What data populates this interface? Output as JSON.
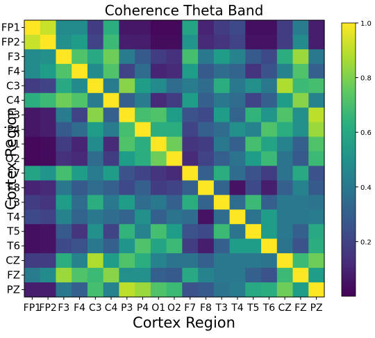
{
  "chart_data": {
    "type": "heatmap",
    "title": "Coherence Theta Band",
    "xlabel": "Cortex Region",
    "ylabel": "Cortex Region",
    "row_labels": [
      "FP1",
      "FP2",
      "F3",
      "F4",
      "C3",
      "C4",
      "P3",
      "P4",
      "O1",
      "O2",
      "F7",
      "F8",
      "T3",
      "T4",
      "T5",
      "T6",
      "CZ",
      "FZ",
      "PZ"
    ],
    "col_labels": [
      "FP1",
      "FP2",
      "F3",
      "F4",
      "C3",
      "C4",
      "P3",
      "P4",
      "O1",
      "O2",
      "F7",
      "F8",
      "T3",
      "T4",
      "T5",
      "T6",
      "CZ",
      "FZ",
      "PZ"
    ],
    "colormap": "viridis",
    "colorbar": {
      "min": 0.0,
      "max": 1.0,
      "ticks": [
        0.2,
        0.4,
        0.6,
        0.8,
        1.0
      ],
      "tick_labels": [
        "0.2",
        "0.4",
        "0.6",
        "0.8",
        "1.0"
      ]
    },
    "values": [
      [
        1.0,
        0.92,
        0.48,
        0.48,
        0.18,
        0.62,
        0.06,
        0.06,
        0.02,
        0.02,
        0.58,
        0.1,
        0.18,
        0.22,
        0.04,
        0.04,
        0.18,
        0.42,
        0.08
      ],
      [
        0.92,
        1.0,
        0.5,
        0.55,
        0.2,
        0.68,
        0.08,
        0.08,
        0.03,
        0.03,
        0.52,
        0.12,
        0.15,
        0.2,
        0.05,
        0.05,
        0.18,
        0.48,
        0.08
      ],
      [
        0.48,
        0.5,
        1.0,
        0.72,
        0.6,
        0.78,
        0.42,
        0.28,
        0.18,
        0.14,
        0.7,
        0.4,
        0.55,
        0.45,
        0.28,
        0.22,
        0.62,
        0.85,
        0.4
      ],
      [
        0.48,
        0.55,
        0.72,
        1.0,
        0.48,
        0.72,
        0.2,
        0.35,
        0.1,
        0.12,
        0.55,
        0.28,
        0.35,
        0.32,
        0.15,
        0.25,
        0.45,
        0.72,
        0.3
      ],
      [
        0.18,
        0.2,
        0.6,
        0.48,
        1.0,
        0.42,
        0.82,
        0.55,
        0.48,
        0.35,
        0.42,
        0.35,
        0.62,
        0.4,
        0.5,
        0.4,
        0.88,
        0.68,
        0.7
      ],
      [
        0.62,
        0.68,
        0.78,
        0.72,
        0.42,
        1.0,
        0.3,
        0.42,
        0.12,
        0.18,
        0.55,
        0.3,
        0.4,
        0.35,
        0.2,
        0.3,
        0.55,
        0.82,
        0.45
      ],
      [
        0.06,
        0.08,
        0.42,
        0.2,
        0.82,
        0.3,
        1.0,
        0.7,
        0.72,
        0.55,
        0.25,
        0.22,
        0.55,
        0.32,
        0.65,
        0.52,
        0.72,
        0.5,
        0.9
      ],
      [
        0.06,
        0.08,
        0.28,
        0.35,
        0.55,
        0.42,
        0.7,
        1.0,
        0.62,
        0.62,
        0.2,
        0.3,
        0.35,
        0.5,
        0.45,
        0.72,
        0.62,
        0.5,
        0.85
      ],
      [
        0.02,
        0.03,
        0.18,
        0.1,
        0.48,
        0.12,
        0.72,
        0.62,
        1.0,
        0.78,
        0.15,
        0.18,
        0.4,
        0.3,
        0.7,
        0.58,
        0.45,
        0.3,
        0.72
      ],
      [
        0.02,
        0.03,
        0.14,
        0.12,
        0.35,
        0.18,
        0.55,
        0.62,
        0.78,
        1.0,
        0.12,
        0.2,
        0.3,
        0.38,
        0.55,
        0.68,
        0.38,
        0.28,
        0.68
      ],
      [
        0.58,
        0.52,
        0.7,
        0.55,
        0.42,
        0.55,
        0.25,
        0.2,
        0.15,
        0.12,
        1.0,
        0.3,
        0.62,
        0.35,
        0.25,
        0.18,
        0.38,
        0.6,
        0.25
      ],
      [
        0.1,
        0.12,
        0.4,
        0.28,
        0.35,
        0.3,
        0.22,
        0.3,
        0.18,
        0.2,
        0.3,
        1.0,
        0.32,
        0.05,
        0.22,
        0.08,
        0.3,
        0.45,
        0.28
      ],
      [
        0.18,
        0.15,
        0.55,
        0.35,
        0.62,
        0.4,
        0.55,
        0.35,
        0.4,
        0.3,
        0.62,
        0.32,
        1.0,
        0.35,
        0.68,
        0.3,
        0.4,
        0.4,
        0.38
      ],
      [
        0.22,
        0.2,
        0.45,
        0.32,
        0.4,
        0.35,
        0.32,
        0.5,
        0.3,
        0.38,
        0.35,
        0.05,
        0.35,
        1.0,
        0.38,
        0.55,
        0.4,
        0.4,
        0.42
      ],
      [
        0.04,
        0.05,
        0.28,
        0.15,
        0.5,
        0.2,
        0.65,
        0.45,
        0.7,
        0.55,
        0.25,
        0.22,
        0.68,
        0.38,
        1.0,
        0.55,
        0.4,
        0.3,
        0.6
      ],
      [
        0.04,
        0.05,
        0.22,
        0.25,
        0.4,
        0.3,
        0.52,
        0.72,
        0.58,
        0.68,
        0.18,
        0.08,
        0.3,
        0.55,
        0.55,
        1.0,
        0.38,
        0.25,
        0.62
      ],
      [
        0.18,
        0.18,
        0.62,
        0.45,
        0.88,
        0.55,
        0.72,
        0.62,
        0.45,
        0.38,
        0.38,
        0.3,
        0.4,
        0.4,
        0.4,
        0.38,
        1.0,
        0.68,
        0.78
      ],
      [
        0.42,
        0.48,
        0.85,
        0.72,
        0.68,
        0.82,
        0.5,
        0.5,
        0.3,
        0.28,
        0.6,
        0.45,
        0.4,
        0.4,
        0.3,
        0.25,
        0.68,
        1.0,
        0.55
      ],
      [
        0.08,
        0.08,
        0.4,
        0.3,
        0.7,
        0.45,
        0.9,
        0.85,
        0.72,
        0.68,
        0.25,
        0.28,
        0.38,
        0.42,
        0.6,
        0.62,
        0.78,
        0.55,
        1.0
      ]
    ]
  }
}
